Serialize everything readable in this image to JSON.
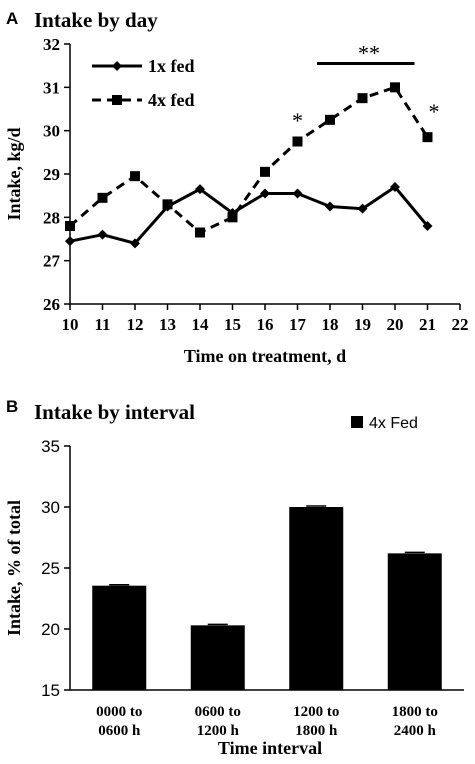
{
  "chart_data": [
    {
      "panel_label": "A",
      "type": "line",
      "title": "Intake by day",
      "xlabel": "Time on treatment, d",
      "ylabel": "Intake, kg/d",
      "xlim": [
        10,
        22
      ],
      "ylim": [
        26,
        32
      ],
      "x_ticks": [
        "10",
        "11",
        "12",
        "13",
        "14",
        "15",
        "16",
        "17",
        "18",
        "19",
        "20",
        "21",
        "22"
      ],
      "y_ticks": [
        "26",
        "27",
        "28",
        "29",
        "30",
        "31",
        "32"
      ],
      "grid": false,
      "legend_position": "top-left",
      "series": [
        {
          "name": "1x fed",
          "marker": "diamond",
          "line": "solid",
          "x": [
            10,
            11,
            12,
            13,
            14,
            15,
            16,
            17,
            18,
            19,
            20,
            21
          ],
          "values": [
            27.45,
            27.6,
            27.4,
            28.25,
            28.65,
            28.1,
            28.55,
            28.55,
            28.25,
            28.2,
            28.7,
            27.8
          ]
        },
        {
          "name": "4x fed",
          "marker": "square",
          "line": "dashed",
          "x": [
            10,
            11,
            12,
            13,
            14,
            15,
            16,
            17,
            18,
            19,
            20,
            21
          ],
          "values": [
            27.8,
            28.45,
            28.95,
            28.3,
            27.65,
            28.0,
            29.05,
            29.75,
            30.25,
            30.75,
            31.0,
            29.85
          ]
        }
      ],
      "annotations": [
        {
          "text": "*",
          "x": 17,
          "y": 30.25
        },
        {
          "text": "*",
          "x": 21.2,
          "y": 30.45
        },
        {
          "text": "**",
          "x": 19.2,
          "y": 31.8,
          "bar_from": 17.6,
          "bar_to": 20.6,
          "bar_y": 31.55
        }
      ]
    },
    {
      "panel_label": "B",
      "type": "bar",
      "title": "Intake by interval",
      "xlabel": "Time interval",
      "ylabel": "Intake, % of total",
      "ylim": [
        15,
        35
      ],
      "y_ticks": [
        "15",
        "20",
        "25",
        "30",
        "35"
      ],
      "grid": false,
      "legend_position": "top-right",
      "categories": [
        [
          "0000 to",
          "0600 h"
        ],
        [
          "0600 to",
          "1200 h"
        ],
        [
          "1200 to",
          "1800 h"
        ],
        [
          "1800 to",
          "2400 h"
        ]
      ],
      "series": [
        {
          "name": "4x Fed",
          "values": [
            23.55,
            20.3,
            30.0,
            26.2
          ]
        }
      ],
      "colors": {
        "bar": "#000000"
      }
    }
  ]
}
